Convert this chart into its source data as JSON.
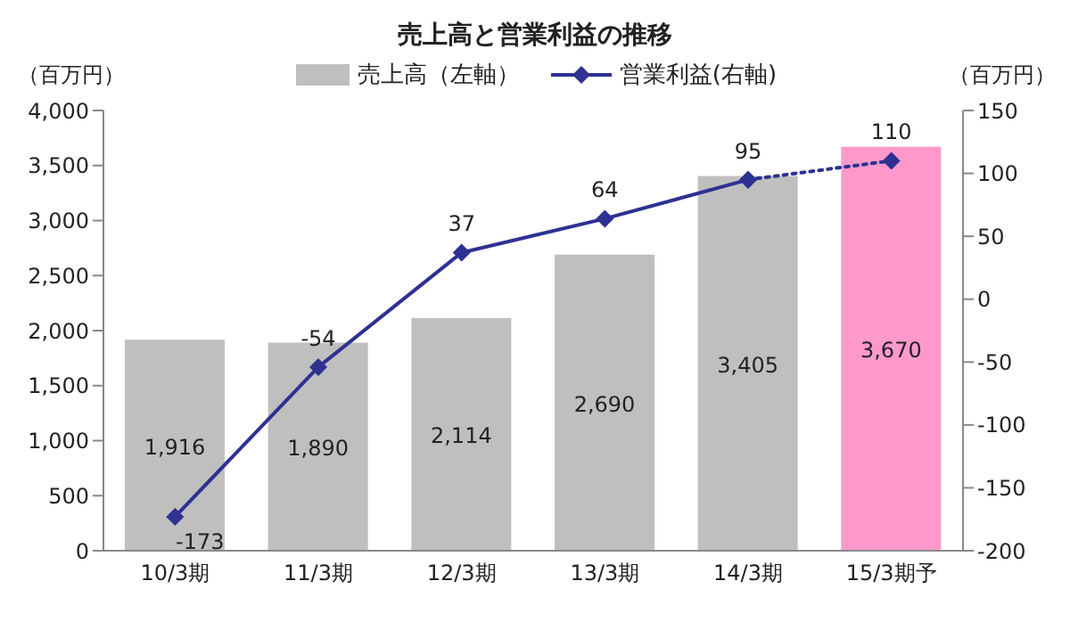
{
  "chart_data": {
    "type": "bar",
    "title": "売上高と営業利益の推移",
    "ylabel": "（百万円）",
    "y2label": "（百万円）",
    "categories": [
      "10/3期",
      "11/3期",
      "12/3期",
      "13/3期",
      "14/3期",
      "15/3期予"
    ],
    "series": [
      {
        "name": "売上高（左軸）",
        "colors": [
          "#bfbfbf",
          "#bfbfbf",
          "#bfbfbf",
          "#bfbfbf",
          "#bfbfbf",
          "#ff99cc"
        ],
        "values": [
          1916,
          1890,
          2114,
          2690,
          3405,
          3670
        ],
        "value_labels": [
          "1,916",
          "1,890",
          "2,114",
          "2,690",
          "3,405",
          "3,670"
        ]
      },
      {
        "type": "line",
        "name": "営業利益(右軸)",
        "axis": "y2",
        "color": "#2e3192",
        "marker": "diamond",
        "line_style": "solid",
        "values": [
          -173,
          -54,
          37,
          64,
          95,
          null
        ],
        "value_labels": [
          "-173",
          "-54",
          "37",
          "64",
          "95",
          null
        ]
      },
      {
        "type": "line",
        "axis": "y2",
        "color": "#2e3192",
        "marker": "diamond",
        "line_style": "dotted",
        "values": [
          null,
          null,
          null,
          null,
          95,
          110
        ],
        "value_labels": [
          null,
          null,
          null,
          null,
          null,
          "110"
        ]
      }
    ],
    "ylim": [
      0,
      4000
    ],
    "yticks": [
      {
        "value": 0,
        "label": "0"
      },
      {
        "value": 500,
        "label": "500"
      },
      {
        "value": 1000,
        "label": "1,000"
      },
      {
        "value": 1500,
        "label": "1,500"
      },
      {
        "value": 2000,
        "label": "2,000"
      },
      {
        "value": 2500,
        "label": "2,500"
      },
      {
        "value": 3000,
        "label": "3,000"
      },
      {
        "value": 3500,
        "label": "3,500"
      },
      {
        "value": 4000,
        "label": "4,000"
      }
    ],
    "y2lim": [
      -200,
      150
    ],
    "y2ticks": [
      -200,
      -150,
      -100,
      -50,
      0,
      50,
      100,
      150
    ],
    "legend": "top",
    "grid": false
  }
}
